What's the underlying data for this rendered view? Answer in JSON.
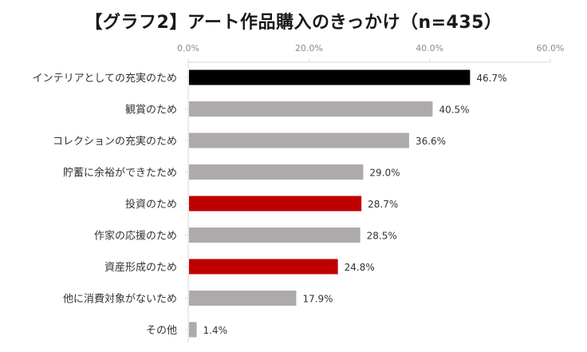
{
  "title": "【グラフ2】アート作品購入のきっかけ（n=435）",
  "chart_data": {
    "type": "bar",
    "orientation": "horizontal",
    "title": "【グラフ2】アート作品購入のきっかけ（n=435）",
    "xlabel": "",
    "ylabel": "",
    "xlim": [
      0,
      60
    ],
    "ticks": [
      "0.0%",
      "20.0%",
      "40.0%",
      "60.0%"
    ],
    "tick_values": [
      0,
      20,
      40,
      60
    ],
    "grid": false,
    "legend": "none",
    "categories": [
      "インテリアとしての充実のため",
      "観賞のため",
      "コレクションの充実のため",
      "貯蓄に余裕ができたため",
      "投資のため",
      "作家の応援のため",
      "資産形成のため",
      "他に消費対象がないため",
      "その他"
    ],
    "values": [
      46.7,
      40.5,
      36.6,
      29.0,
      28.7,
      28.5,
      24.8,
      17.9,
      1.4
    ],
    "value_labels": [
      "46.7%",
      "40.5%",
      "36.6%",
      "29.0%",
      "28.7%",
      "28.5%",
      "24.8%",
      "17.9%",
      "1.4%"
    ],
    "bar_colors": [
      "#000000",
      "#aeaaaa",
      "#aeaaaa",
      "#aeaaaa",
      "#c00000",
      "#aeaaaa",
      "#c00000",
      "#aeaaaa",
      "#aeaaaa"
    ]
  }
}
